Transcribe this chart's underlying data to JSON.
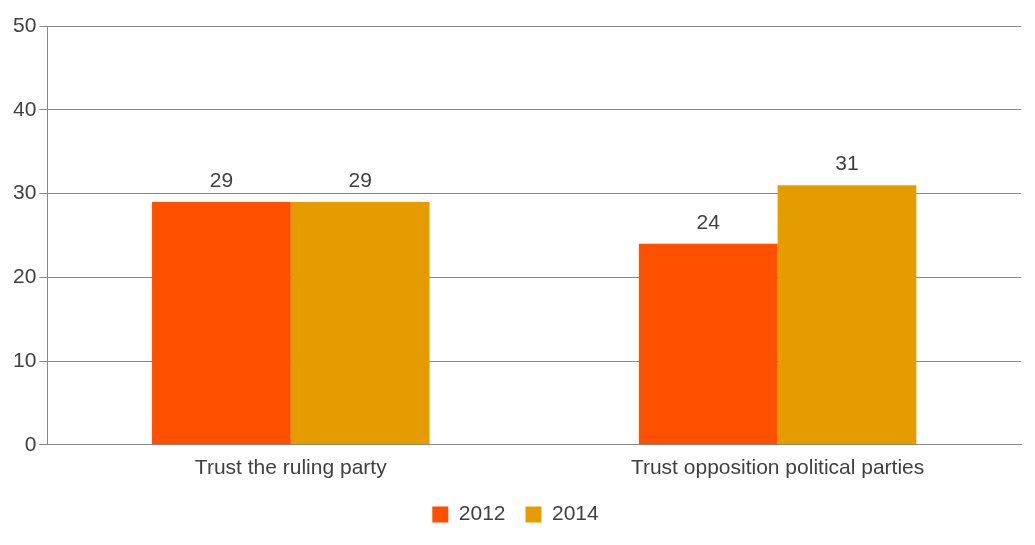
{
  "chart_data": {
    "type": "bar",
    "categories": [
      "Trust the ruling party",
      "Trust opposition political parties"
    ],
    "series": [
      {
        "name": "2012",
        "color": "#ff5000",
        "values": [
          29,
          24
        ]
      },
      {
        "name": "2014",
        "color": "#e59c00",
        "values": [
          29,
          31
        ]
      }
    ],
    "ylim": [
      0,
      50
    ],
    "yticks": [
      0,
      10,
      20,
      30,
      40,
      50
    ],
    "grid": "y",
    "legend": "bottom",
    "data_labels": true
  }
}
